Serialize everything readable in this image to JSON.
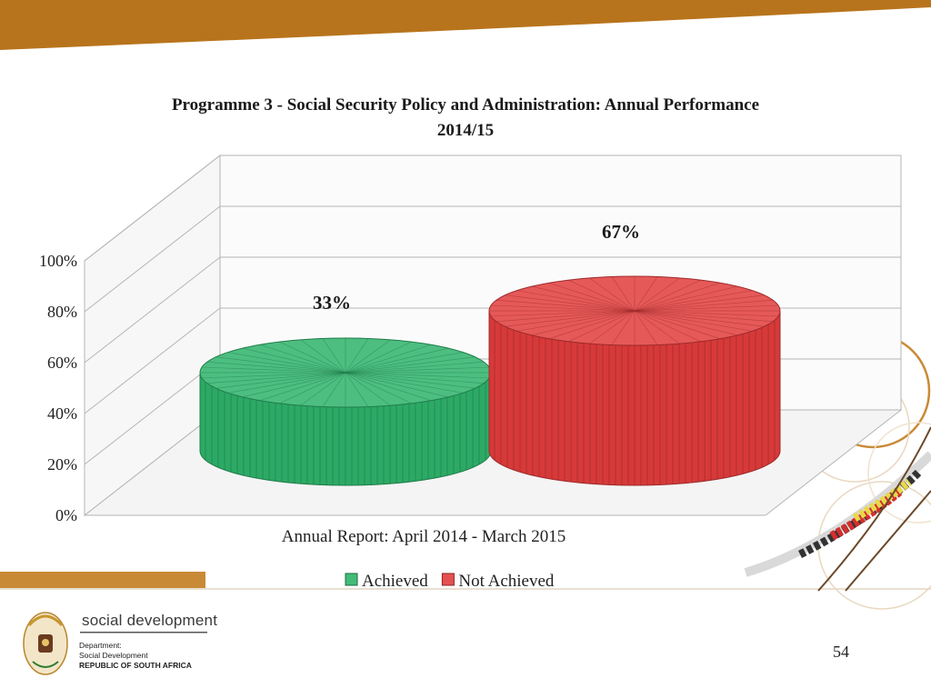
{
  "slide": {
    "title_line1": "Programme 3 - Social Security Policy and Administration: Annual Performance",
    "title_line2": "2014/15",
    "page_number": "54"
  },
  "logo": {
    "name": "social development",
    "line1": "Department:",
    "line2": "Social Development",
    "line3": "REPUBLIC OF SOUTH AFRICA"
  },
  "colors": {
    "header_band": "#b8741c",
    "footer_band": "#c98a35",
    "achieved": "#2eb36a",
    "not_achieved": "#e23c3c"
  },
  "chart_data": {
    "type": "bar",
    "style": "3d cylinder",
    "title": "Programme 3 - Social Security Policy and Administration: Annual Performance 2014/15",
    "xlabel": "Annual Report: April 2014 - March 2015",
    "ylabel": "",
    "categories": [
      "Annual Report: April 2014 - March 2015"
    ],
    "series": [
      {
        "name": "Achieved",
        "values": [
          33
        ],
        "label": "33%",
        "color": "#2eb36a"
      },
      {
        "name": "Not Achieved",
        "values": [
          67
        ],
        "label": "67%",
        "color": "#e23c3c"
      }
    ],
    "ylim": [
      0,
      100
    ],
    "yticks": [
      "0%",
      "20%",
      "40%",
      "60%",
      "80%",
      "100%"
    ],
    "grid": true,
    "legend": "bottom"
  }
}
